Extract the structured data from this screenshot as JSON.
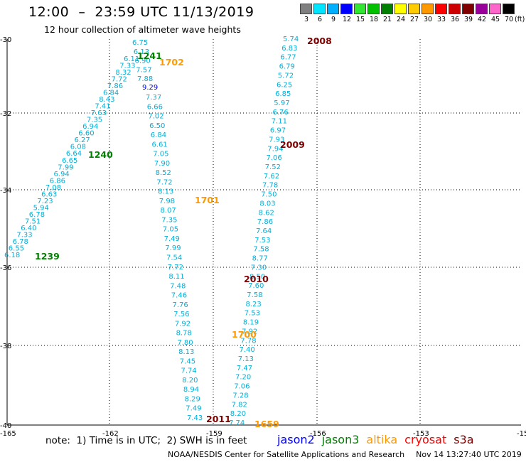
{
  "title": "12:00  –  23:59 UTC 11/13/2019",
  "subtitle": "12 hour collection of altimeter wave heights",
  "colorbar": {
    "labels": [
      "3",
      "6",
      "9",
      "12",
      "15",
      "18",
      "21",
      "24",
      "27",
      "30",
      "33",
      "36",
      "39",
      "42",
      "45",
      "70"
    ],
    "colors": [
      "#808080",
      "#00e5ff",
      "#00b0ff",
      "#0000ff",
      "#33e633",
      "#00c000",
      "#008000",
      "#ffff00",
      "#ffcc00",
      "#ff9900",
      "#ff0000",
      "#cc0000",
      "#800000",
      "#990099",
      "#ff66cc",
      "#000000"
    ],
    "unit": "(ft)"
  },
  "axes": {
    "lon_labels": [
      "-165",
      "-162",
      "-159",
      "-156",
      "-153",
      "-15"
    ],
    "lat_labels": [
      "-30",
      "-32",
      "-34",
      "-36",
      "-38",
      "-40"
    ]
  },
  "tracks": [
    {
      "color": "#00b0d8",
      "values": [
        "6.18",
        "6.55",
        "6.78",
        "7.33",
        "6.40",
        "7.51",
        "6.78",
        "5.94",
        "7.23",
        "6.63",
        "7.08",
        "6.86",
        "6.94",
        "7.99",
        "6.65",
        "6.64",
        "6.08",
        "6.27",
        "6.60",
        "6.94",
        "7.35",
        "7.63",
        "7.41",
        "8.43",
        "6.84",
        "7.86",
        "7.72",
        "8.32",
        "7.33",
        "6.11"
      ]
    },
    {
      "color": "#00b0d8",
      "values": [
        "6.75",
        "6.13",
        "6.90",
        "7.57",
        "7.88"
      ]
    },
    {
      "color": "#0000cc",
      "values": [
        "9.29"
      ]
    },
    {
      "color": "#00b0d8",
      "values": [
        "7.37",
        "6.66",
        "7.02",
        "6.50",
        "6.84",
        "6.61",
        "7.05",
        "7.90",
        "8.52",
        "7.72",
        "8.13",
        "7.98",
        "8.07",
        "7.35",
        "7.05",
        "7.49",
        "7.99",
        "7.54",
        "7.72",
        "8.11",
        "7.48",
        "7.46",
        "7.76",
        "7.56",
        "7.92",
        "8.78",
        "7.80",
        "8.13",
        "7.45",
        "7.74",
        "8.20",
        "8.94",
        "8.29",
        "7.49",
        "7.43"
      ]
    },
    {
      "color": "#00b0d8",
      "values": [
        "5.74",
        "6.83",
        "6.77",
        "6.79",
        "5.72",
        "6.25",
        "6.85",
        "5.97",
        "6.76",
        "7.11",
        "6.97",
        "7.93",
        "7.94",
        "7.06",
        "7.52",
        "7.62",
        "7.78",
        "7.50",
        "8.03",
        "8.62",
        "7.86",
        "7.64",
        "7.53",
        "7.58",
        "8.77",
        "7.30",
        "8.50",
        "7.60",
        "7.58",
        "8.23",
        "7.53",
        "8.19",
        "7.92",
        "7.78",
        "7.40",
        "7.13",
        "7.47",
        "7.20",
        "7.06",
        "7.28",
        "7.82",
        "8.20",
        "7.74"
      ]
    }
  ],
  "time_labels": [
    {
      "text": "1241",
      "color": "#008000"
    },
    {
      "text": "1702",
      "color": "#ff9900"
    },
    {
      "text": "1240",
      "color": "#008000"
    },
    {
      "text": "1239",
      "color": "#008000"
    },
    {
      "text": "1701",
      "color": "#ff9900"
    },
    {
      "text": "2008",
      "color": "#800000"
    },
    {
      "text": "2009",
      "color": "#800000"
    },
    {
      "text": "2010",
      "color": "#800000"
    },
    {
      "text": "1700",
      "color": "#ff9900"
    },
    {
      "text": "2011",
      "color": "#800000"
    },
    {
      "text": "1659",
      "color": "#ff9900"
    }
  ],
  "note": "note:  1) Time is in UTC;  2) SWH is in feet",
  "legend": [
    {
      "name": "jason2",
      "color": "#0000ff"
    },
    {
      "name": "jason3",
      "color": "#008000"
    },
    {
      "name": "altika",
      "color": "#ff9900"
    },
    {
      "name": "cryosat",
      "color": "#ff0000"
    },
    {
      "name": "s3a",
      "color": "#800000"
    }
  ],
  "credit": "NOAA/NESDIS Center for Satellite Applications and Research",
  "timestamp": "Nov 14 13:27:40 UTC 2019"
}
